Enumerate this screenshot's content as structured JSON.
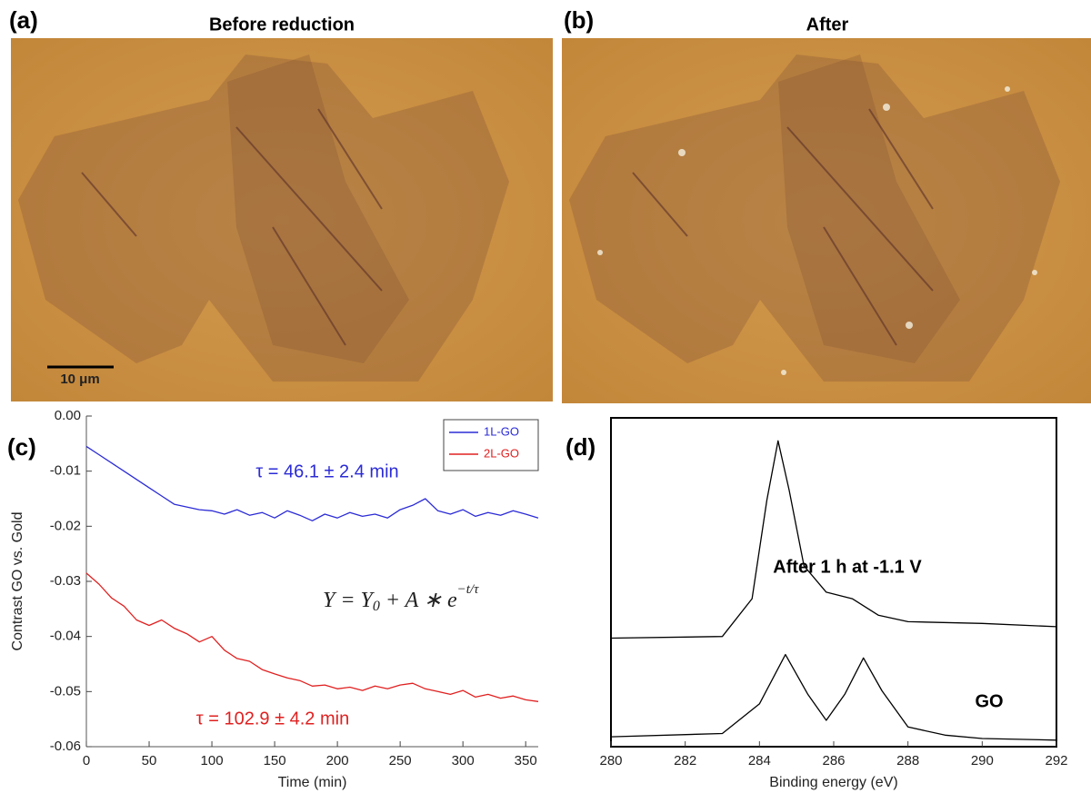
{
  "panels": [
    {
      "label": "(a)",
      "title": "Before reduction",
      "scale_bar": "10 μm"
    },
    {
      "label": "(b)",
      "title": "After"
    }
  ],
  "chart_data": [
    {
      "type": "line",
      "panel": "(c)",
      "x_label": "Time (min)",
      "y_label": "Contrast GO vs. Gold",
      "x": [
        0,
        10,
        20,
        30,
        40,
        50,
        60,
        70,
        80,
        90,
        100,
        110,
        120,
        130,
        140,
        150,
        160,
        170,
        180,
        190,
        200,
        210,
        220,
        230,
        240,
        250,
        260,
        270,
        280,
        290,
        300,
        310,
        320,
        330,
        340,
        350,
        360
      ],
      "series": [
        {
          "name": "1L-GO",
          "color": "#2b2bd6",
          "values": [
            -0.0055,
            -0.007,
            -0.0085,
            -0.01,
            -0.0115,
            -0.013,
            -0.0145,
            -0.016,
            -0.0165,
            -0.017,
            -0.0172,
            -0.0178,
            -0.017,
            -0.018,
            -0.0175,
            -0.0185,
            -0.0172,
            -0.018,
            -0.019,
            -0.0178,
            -0.0185,
            -0.0175,
            -0.0182,
            -0.0178,
            -0.0185,
            -0.017,
            -0.0162,
            -0.015,
            -0.0172,
            -0.0178,
            -0.017,
            -0.0182,
            -0.0175,
            -0.018,
            -0.0172,
            -0.0178,
            -0.0185
          ]
        },
        {
          "name": "2L-GO",
          "color": "#e02020",
          "values": [
            -0.0285,
            -0.0305,
            -0.033,
            -0.0345,
            -0.037,
            -0.038,
            -0.037,
            -0.0385,
            -0.0395,
            -0.041,
            -0.04,
            -0.0425,
            -0.044,
            -0.0445,
            -0.046,
            -0.0468,
            -0.0475,
            -0.048,
            -0.049,
            -0.0488,
            -0.0495,
            -0.0492,
            -0.0498,
            -0.049,
            -0.0495,
            -0.0488,
            -0.0485,
            -0.0495,
            -0.05,
            -0.0505,
            -0.0498,
            -0.051,
            -0.0505,
            -0.0512,
            -0.0508,
            -0.0515,
            -0.0518
          ]
        }
      ],
      "xlim": [
        0,
        360
      ],
      "xticks": [
        0,
        50,
        100,
        150,
        200,
        250,
        300,
        350
      ],
      "ylim": [
        -0.06,
        0
      ],
      "yticks": [
        {
          "value": 0,
          "label": "0.00"
        },
        {
          "value": -0.01,
          "label": "-0.01"
        },
        {
          "value": -0.02,
          "label": "-0.02"
        },
        {
          "value": -0.03,
          "label": "-0.03"
        },
        {
          "value": -0.04,
          "label": "-0.04"
        },
        {
          "value": -0.05,
          "label": "-0.05"
        },
        {
          "value": -0.06,
          "label": "-0.06"
        }
      ],
      "legend": "upper right",
      "annotations": [
        {
          "text": "τ = 46.1 ± 2.4 min",
          "color": "#2b2bd6"
        },
        {
          "text": "τ = 102.9 ± 4.2 min",
          "color": "#e02020"
        }
      ],
      "formula": {
        "main": "Y = Y",
        "sub": "0",
        "mid": " + A ∗ e",
        "sup": "−t/τ"
      }
    },
    {
      "type": "line",
      "panel": "(d)",
      "x_label": "Binding energy (eV)",
      "series": [
        {
          "name": "After 1 h at -1.1 V",
          "color": "#000000",
          "x": [
            280,
            283,
            283.8,
            284.2,
            284.5,
            284.8,
            285.2,
            285.8,
            286.5,
            287.2,
            288,
            290,
            292
          ],
          "values": [
            0.33,
            0.335,
            0.45,
            0.75,
            0.93,
            0.78,
            0.55,
            0.47,
            0.45,
            0.4,
            0.38,
            0.375,
            0.365
          ]
        },
        {
          "name": "GO",
          "color": "#000000",
          "x": [
            280,
            283,
            284,
            284.7,
            285.3,
            285.8,
            286.3,
            286.8,
            287.3,
            288,
            289,
            290,
            292
          ],
          "values": [
            0.03,
            0.04,
            0.13,
            0.28,
            0.16,
            0.08,
            0.16,
            0.27,
            0.17,
            0.06,
            0.035,
            0.025,
            0.02
          ]
        }
      ],
      "xlim": [
        280,
        292
      ],
      "xticks": [
        280,
        282,
        284,
        286,
        288,
        290,
        292
      ],
      "ylim": [
        0,
        1
      ]
    }
  ]
}
